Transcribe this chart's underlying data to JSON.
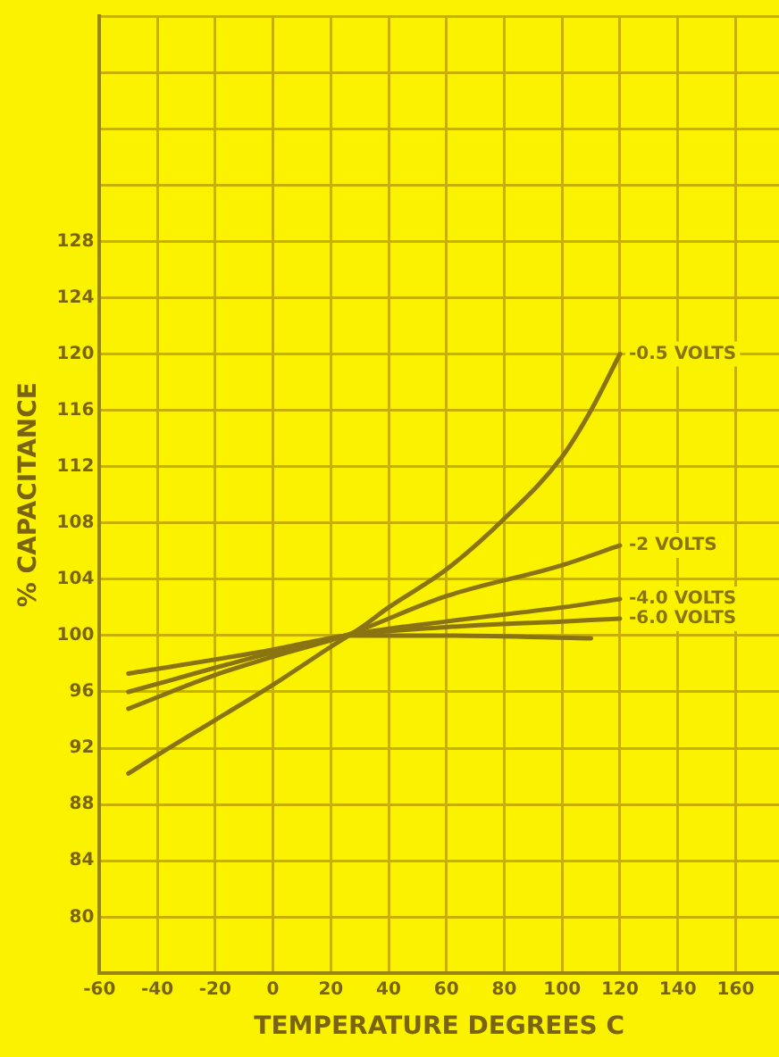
{
  "chart_data": {
    "type": "line",
    "xlabel": "TEMPERATURE DEGREES C",
    "ylabel": "% CAPACITANCE",
    "xlim": [
      -60,
      175
    ],
    "xticks": [
      -60,
      -40,
      -20,
      0,
      20,
      40,
      60,
      80,
      100,
      120,
      140,
      160
    ],
    "ylim": [
      76,
      144
    ],
    "yticks": [
      80,
      84,
      88,
      92,
      96,
      100,
      104,
      108,
      112,
      116,
      120,
      124,
      128,
      {
        "value": 132,
        "label": null
      },
      {
        "value": 136,
        "label": null
      },
      {
        "value": 140,
        "label": null
      },
      {
        "value": 144,
        "label": null
      }
    ],
    "grid": true,
    "legend": false,
    "marker": "none",
    "line_style": "solid",
    "series": [
      {
        "name": "-0.5 VOLTS",
        "color": "#8a7412",
        "x": [
          -50,
          -40,
          -20,
          0,
          20,
          30,
          40,
          60,
          80,
          100,
          110,
          120
        ],
        "values": [
          90.2,
          91.5,
          94,
          96.5,
          99.2,
          100.5,
          102,
          104.7,
          108.3,
          112.7,
          116,
          120
        ]
      },
      {
        "name": "-2 VOLTS",
        "color": "#8a7412",
        "x": [
          -50,
          -20,
          0,
          25,
          60,
          100,
          120
        ],
        "values": [
          94.8,
          97.2,
          98.5,
          100,
          102.8,
          105,
          106.4
        ]
      },
      {
        "name": "-4.0 VOLTS",
        "color": "#8a7412",
        "x": [
          -50,
          0,
          25,
          60,
          100,
          120
        ],
        "values": [
          96,
          98.8,
          100,
          101,
          102,
          102.6
        ]
      },
      {
        "name": "-6.0 VOLTS",
        "color": "#8a7412",
        "x": [
          -50,
          0,
          25,
          60,
          100,
          120
        ],
        "values": [
          97.3,
          99,
          100,
          100.6,
          101,
          101.2
        ]
      },
      {
        "color": "#8a7412",
        "x": [
          25,
          60,
          110
        ],
        "values": [
          100,
          100,
          99.8
        ]
      }
    ]
  }
}
